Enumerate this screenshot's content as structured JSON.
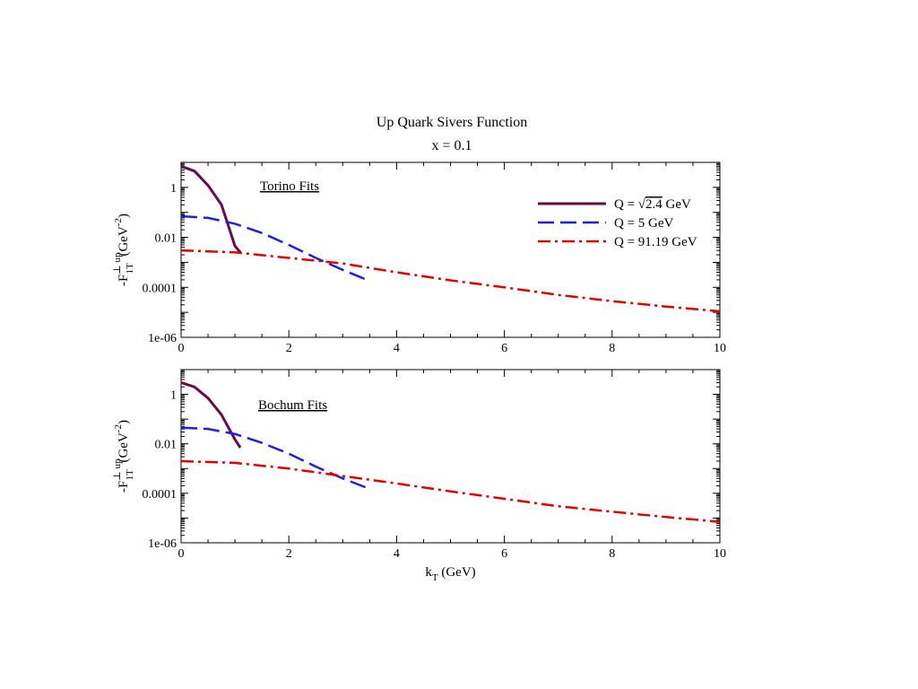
{
  "figure": {
    "title": "Up Quark Sivers Function",
    "subtitle": "x = 0.1"
  },
  "chart_data": [
    {
      "type": "line",
      "panel_label": "Torino Fits",
      "xlabel": "",
      "ylabel_main": "-F",
      "ylabel_sup": "⊥ up",
      "ylabel_sub": "1T",
      "ylabel_unit": "(GeV",
      "ylabel_unit_exp": "-2",
      "ylabel_unit_close": ")",
      "yscale": "log",
      "xlim": [
        0,
        10
      ],
      "ylim": [
        1e-06,
        10
      ],
      "x_ticks": [
        "0",
        "2",
        "4",
        "6",
        "8",
        "10"
      ],
      "y_ticks": [
        {
          "value": 1,
          "label": "1"
        },
        {
          "value": 0.01,
          "label": "0.01"
        },
        {
          "value": 0.0001,
          "label": "0.0001"
        },
        {
          "value": 1e-06,
          "label": "1e-06"
        }
      ],
      "legend": {
        "placement": "top-right",
        "entries": [
          {
            "series": 0,
            "prefix": "Q = ",
            "radical": "√",
            "radicand": "2.4",
            "suffix": " GeV"
          },
          {
            "series": 1,
            "label": "Q = 5 GeV"
          },
          {
            "series": 2,
            "label": "Q = 91.19 GeV"
          }
        ]
      },
      "series": [
        {
          "color": "#6b0a4a",
          "dash": "solid",
          "x": [
            0.0,
            0.25,
            0.5,
            0.75,
            1.0,
            1.1
          ],
          "y": [
            7.0,
            4.5,
            1.2,
            0.2,
            0.0045,
            0.0025
          ]
        },
        {
          "color": "#1f1fe0",
          "dash": "dashed",
          "x": [
            0.0,
            0.5,
            1.0,
            1.5,
            2.0,
            2.5,
            3.0,
            3.5
          ],
          "y": [
            0.07,
            0.06,
            0.035,
            0.015,
            0.005,
            0.0015,
            0.0005,
            0.00018
          ]
        },
        {
          "color": "#e00000",
          "dash": "dashdot",
          "x": [
            0.0,
            1.0,
            2.0,
            3.0,
            4.0,
            5.0,
            6.0,
            7.0,
            8.0,
            9.0,
            10.0
          ],
          "y": [
            0.003,
            0.0025,
            0.0015,
            0.0009,
            0.0004,
            0.00019,
            0.0001,
            5e-05,
            2.8e-05,
            1.7e-05,
            1.1e-05
          ]
        }
      ]
    },
    {
      "type": "line",
      "panel_label": "Bochum Fits",
      "xlabel_main": "k",
      "xlabel_sub": "T",
      "xlabel_unit": " (GeV)",
      "ylabel_main": "-F",
      "ylabel_sup": "⊥ up",
      "ylabel_sub": "1T",
      "ylabel_unit": "(GeV",
      "ylabel_unit_exp": "-2",
      "ylabel_unit_close": ")",
      "yscale": "log",
      "xlim": [
        0,
        10
      ],
      "ylim": [
        1e-06,
        10
      ],
      "x_ticks": [
        "0",
        "2",
        "4",
        "6",
        "8",
        "10"
      ],
      "y_ticks": [
        {
          "value": 1,
          "label": "1"
        },
        {
          "value": 0.01,
          "label": "0.01"
        },
        {
          "value": 0.0001,
          "label": "0.0001"
        },
        {
          "value": 1e-06,
          "label": "1e-06"
        }
      ],
      "series": [
        {
          "color": "#6b0a4a",
          "dash": "solid",
          "x": [
            0.0,
            0.25,
            0.5,
            0.75,
            1.0,
            1.1
          ],
          "y": [
            3.0,
            2.0,
            0.7,
            0.15,
            0.015,
            0.007
          ]
        },
        {
          "color": "#1f1fe0",
          "dash": "dashed",
          "x": [
            0.0,
            0.5,
            1.0,
            1.5,
            2.0,
            2.5,
            3.0,
            3.5
          ],
          "y": [
            0.045,
            0.04,
            0.025,
            0.011,
            0.004,
            0.0012,
            0.0004,
            0.00015
          ]
        },
        {
          "color": "#e00000",
          "dash": "dashdot",
          "x": [
            0.0,
            1.0,
            2.0,
            3.0,
            4.0,
            5.0,
            6.0,
            7.0,
            8.0,
            9.0,
            10.0
          ],
          "y": [
            0.002,
            0.0017,
            0.001,
            0.0005,
            0.00025,
            0.00012,
            6e-05,
            3e-05,
            1.8e-05,
            1.1e-05,
            7e-06
          ]
        }
      ]
    }
  ]
}
